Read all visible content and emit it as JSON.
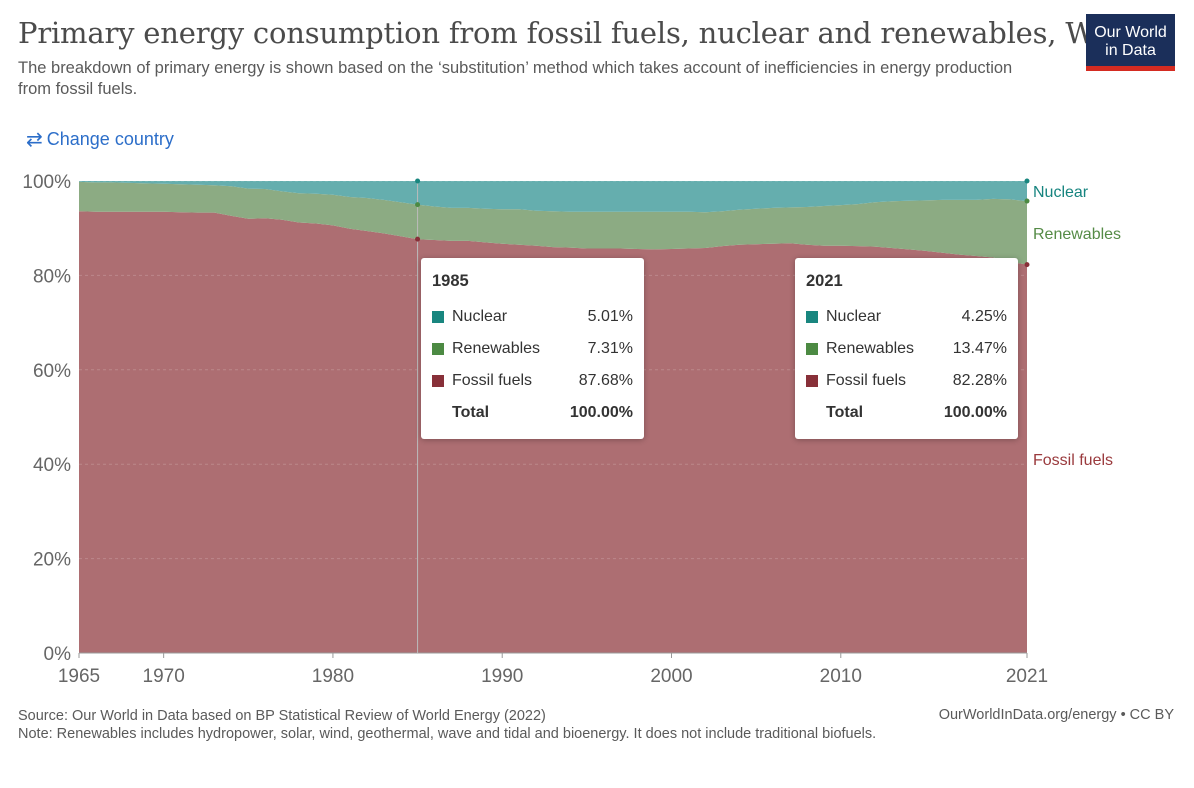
{
  "header": {
    "title": "Primary energy consumption from fossil fuels, nuclear and renewables, World",
    "subtitle": "The breakdown of primary energy is shown based on the ‘substitution’ method which takes account of inefficiencies in energy production from fossil fuels."
  },
  "logo": {
    "line1": "Our World",
    "line2": "in Data"
  },
  "controls": {
    "change_country": "Change country"
  },
  "colors": {
    "fossil": "#ad6e72",
    "renewables": "#8cab83",
    "nuclear": "#65aeae",
    "fossil_label": "#9a3a3d",
    "renewables_label": "#558b46",
    "nuclear_label": "#16847f",
    "fossil_swatch": "#883039",
    "renewables_swatch": "#4c8a43",
    "nuclear_swatch": "#19867f"
  },
  "chart_data": {
    "type": "area",
    "stacked": true,
    "x_ticks": [
      1965,
      1970,
      1980,
      1990,
      2000,
      2010,
      2021
    ],
    "y_ticks": [
      0,
      20,
      40,
      60,
      80,
      100
    ],
    "y_tick_suffix": "%",
    "xlim": [
      1965,
      2021
    ],
    "ylim": [
      0,
      100
    ],
    "x": [
      1965,
      1966,
      1967,
      1968,
      1969,
      1970,
      1971,
      1972,
      1973,
      1974,
      1975,
      1976,
      1977,
      1978,
      1979,
      1980,
      1981,
      1982,
      1983,
      1984,
      1985,
      1986,
      1987,
      1988,
      1989,
      1990,
      1991,
      1992,
      1993,
      1994,
      1995,
      1996,
      1997,
      1998,
      1999,
      2000,
      2001,
      2002,
      2003,
      2004,
      2005,
      2006,
      2007,
      2008,
      2009,
      2010,
      2011,
      2012,
      2013,
      2014,
      2015,
      2016,
      2017,
      2018,
      2019,
      2020,
      2021
    ],
    "series": [
      {
        "name": "Fossil fuels",
        "values": [
          93.6,
          93.5,
          93.5,
          93.5,
          93.5,
          93.5,
          93.4,
          93.3,
          93.3,
          92.6,
          92.0,
          92.1,
          91.8,
          91.2,
          91.0,
          90.6,
          89.9,
          89.4,
          88.9,
          88.3,
          87.68,
          87.5,
          87.3,
          87.3,
          87.0,
          86.7,
          86.5,
          86.3,
          86.0,
          85.9,
          85.7,
          85.7,
          85.7,
          85.6,
          85.5,
          85.6,
          85.7,
          85.8,
          86.2,
          86.5,
          86.6,
          86.7,
          86.8,
          86.5,
          86.3,
          86.3,
          86.2,
          86.1,
          85.8,
          85.5,
          85.2,
          84.8,
          84.4,
          84.1,
          83.8,
          82.9,
          82.28
        ]
      },
      {
        "name": "Renewables",
        "values": [
          6.2,
          6.2,
          6.2,
          6.1,
          6.0,
          5.9,
          5.9,
          5.9,
          5.8,
          6.3,
          6.4,
          6.2,
          6.0,
          6.2,
          6.3,
          6.5,
          6.7,
          7.0,
          7.1,
          7.2,
          7.31,
          7.1,
          7.0,
          7.0,
          7.1,
          7.3,
          7.5,
          7.4,
          7.6,
          7.6,
          7.8,
          7.8,
          7.8,
          7.9,
          8.0,
          7.9,
          7.8,
          7.6,
          7.4,
          7.4,
          7.5,
          7.6,
          7.6,
          8.0,
          8.4,
          8.6,
          8.9,
          9.4,
          9.9,
          10.3,
          10.7,
          11.2,
          11.6,
          11.9,
          12.4,
          13.2,
          13.47
        ]
      },
      {
        "name": "Nuclear",
        "values": [
          0.2,
          0.3,
          0.3,
          0.4,
          0.5,
          0.6,
          0.7,
          0.8,
          0.9,
          1.1,
          1.6,
          1.7,
          2.2,
          2.6,
          2.7,
          2.9,
          3.4,
          3.6,
          4.0,
          4.5,
          5.01,
          5.4,
          5.7,
          5.7,
          5.9,
          6.0,
          6.0,
          6.3,
          6.4,
          6.5,
          6.5,
          6.5,
          6.5,
          6.5,
          6.5,
          6.5,
          6.5,
          6.6,
          6.4,
          6.1,
          5.9,
          5.7,
          5.6,
          5.5,
          5.3,
          5.1,
          4.9,
          4.5,
          4.3,
          4.2,
          4.1,
          4.0,
          4.0,
          4.0,
          3.8,
          3.9,
          4.25
        ]
      }
    ],
    "end_labels": [
      "Nuclear",
      "Renewables",
      "Fossil fuels"
    ],
    "hover_year": 1985
  },
  "tooltips": [
    {
      "year": "1985",
      "rows": [
        {
          "name": "Nuclear",
          "value": "5.01%"
        },
        {
          "name": "Renewables",
          "value": "7.31%"
        },
        {
          "name": "Fossil fuels",
          "value": "87.68%"
        }
      ],
      "total_label": "Total",
      "total_value": "100.00%"
    },
    {
      "year": "2021",
      "rows": [
        {
          "name": "Nuclear",
          "value": "4.25%"
        },
        {
          "name": "Renewables",
          "value": "13.47%"
        },
        {
          "name": "Fossil fuels",
          "value": "82.28%"
        }
      ],
      "total_label": "Total",
      "total_value": "100.00%"
    }
  ],
  "footer": {
    "source": "Source: Our World in Data based on BP Statistical Review of World Energy (2022)",
    "note": "Note: Renewables includes hydropower, solar, wind, geothermal, wave and tidal and bioenergy. It does not include traditional biofuels.",
    "credit": "OurWorldInData.org/energy • CC BY"
  }
}
